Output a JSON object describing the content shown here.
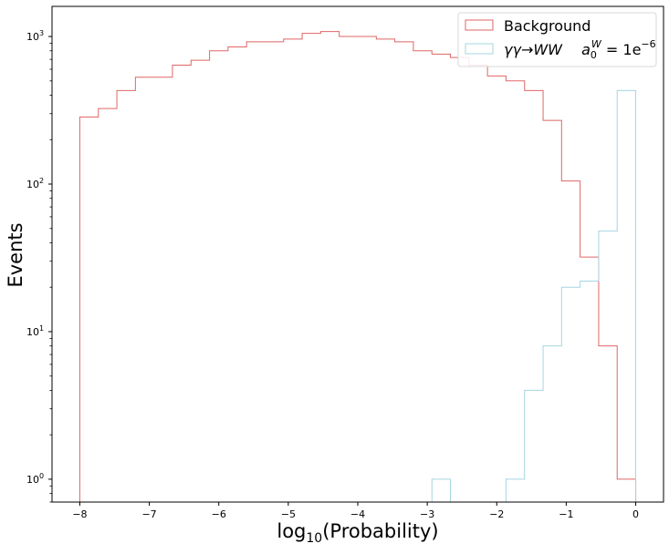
{
  "chart_data": {
    "type": "histogram",
    "title": "",
    "xlabel_main": "log",
    "xlabel_sub": "10",
    "xlabel_rest": "(Probability)",
    "ylabel": "Events",
    "yscale": "log",
    "xlim": [
      -8.4,
      0.4
    ],
    "ylim": [
      0.7,
      1600
    ],
    "x_ticks": [
      {
        "value": -8,
        "label": "−8"
      },
      {
        "value": -7,
        "label": "−7"
      },
      {
        "value": -6,
        "label": "−6"
      },
      {
        "value": -5,
        "label": "−5"
      },
      {
        "value": -4,
        "label": "−4"
      },
      {
        "value": -3,
        "label": "−3"
      },
      {
        "value": -2,
        "label": "−2"
      },
      {
        "value": -1,
        "label": "−1"
      },
      {
        "value": 0,
        "label": "0"
      }
    ],
    "y_ticks": [
      {
        "value": 1,
        "base": "10",
        "exp": "0"
      },
      {
        "value": 10,
        "base": "10",
        "exp": "1"
      },
      {
        "value": 100,
        "base": "10",
        "exp": "2"
      },
      {
        "value": 1000,
        "base": "10",
        "exp": "3"
      }
    ],
    "legend_position": "top-right",
    "series": [
      {
        "name": "Background",
        "color": "#e06666",
        "bin_edges": [
          -8.0,
          -7.733,
          -7.467,
          -7.2,
          -6.933,
          -6.667,
          -6.4,
          -6.133,
          -5.867,
          -5.6,
          -5.333,
          -5.067,
          -4.8,
          -4.533,
          -4.267,
          -4.0,
          -3.733,
          -3.467,
          -3.2,
          -2.933,
          -2.667,
          -2.4,
          -2.133,
          -1.867,
          -1.6,
          -1.333,
          -1.067,
          -0.8,
          -0.533,
          -0.267,
          0.0
        ],
        "counts": [
          285,
          325,
          430,
          530,
          530,
          640,
          690,
          800,
          850,
          920,
          920,
          960,
          1050,
          1080,
          1000,
          1000,
          960,
          920,
          800,
          760,
          720,
          640,
          540,
          500,
          430,
          270,
          105,
          32,
          8,
          1
        ]
      },
      {
        "name": "γγ→WW   a0W = 1e−6",
        "color": "#a6d5e0",
        "bin_edges": [
          -8.0,
          -7.733,
          -7.467,
          -7.2,
          -6.933,
          -6.667,
          -6.4,
          -6.133,
          -5.867,
          -5.6,
          -5.333,
          -5.067,
          -4.8,
          -4.533,
          -4.267,
          -4.0,
          -3.733,
          -3.467,
          -3.2,
          -2.933,
          -2.667,
          -2.4,
          -2.133,
          -1.867,
          -1.6,
          -1.333,
          -1.067,
          -0.8,
          -0.533,
          -0.267,
          0.0
        ],
        "counts": [
          0,
          0,
          0,
          0,
          0,
          0,
          0,
          0,
          0,
          0,
          0,
          0,
          0,
          0,
          0,
          0,
          0,
          0,
          0,
          1,
          0,
          0,
          0,
          1,
          4,
          8,
          20,
          22,
          48,
          430
        ]
      }
    ],
    "legend": {
      "background_label": "Background",
      "signal_label_main": "γγ→WW",
      "signal_param_a": "a",
      "signal_param_sub": "0",
      "signal_param_sup": "W",
      "signal_value": " = 1e",
      "signal_value_sup": "−6"
    }
  }
}
